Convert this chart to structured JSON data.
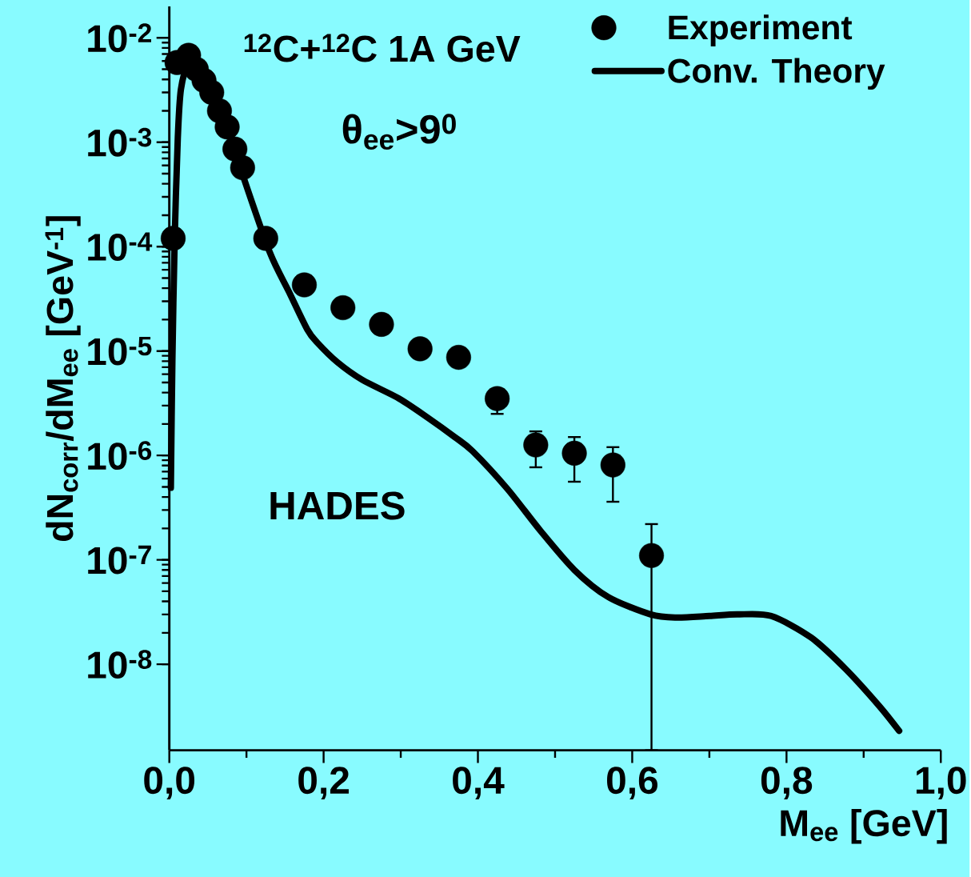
{
  "chart_data": {
    "type": "scatter",
    "xlabel": "M$_{ee}$ [GeV]",
    "ylabel": "dN$_{corr}$/dM$_{ee}$ [GeV$^{-1}$]",
    "annotations": [
      "$^{12}$C+$^{12}$C 1A GeV",
      "θ$_{ee}$>9$^{0}$",
      "HADES"
    ],
    "xlim": [
      0,
      1
    ],
    "ylim": [
      1.5e-09,
      0.02
    ],
    "xticks": [
      {
        "value": 0,
        "label": "0,0"
      },
      {
        "value": 0.2,
        "label": "0,2"
      },
      {
        "value": 0.4,
        "label": "0,4"
      },
      {
        "value": 0.6,
        "label": "0,6"
      },
      {
        "value": 0.8,
        "label": "0,8"
      },
      {
        "value": 1,
        "label": "1,0"
      }
    ],
    "yticks": [
      {
        "value": 1e-08,
        "label": "10$^{-8}$"
      },
      {
        "value": 1e-07,
        "label": "10$^{-7}$"
      },
      {
        "value": 1e-06,
        "label": "10$^{-6}$"
      },
      {
        "value": 1e-05,
        "label": "10$^{-5}$"
      },
      {
        "value": 0.0001,
        "label": "10$^{-4}$"
      },
      {
        "value": 0.001,
        "label": "10$^{-3}$"
      },
      {
        "value": 0.01,
        "label": "10$^{-2}$"
      }
    ],
    "log": "y",
    "legend": "top right",
    "series": [
      {
        "name": "Experiment",
        "marker": "circle",
        "color": "#000000",
        "x": [
          0.005,
          0.01,
          0.025,
          0.035,
          0.045,
          0.055,
          0.065,
          0.075,
          0.085,
          0.095,
          0.125,
          0.175,
          0.225,
          0.275,
          0.325,
          0.375,
          0.425,
          0.475,
          0.525,
          0.575,
          0.625
        ],
        "values": [
          0.00012,
          0.0058,
          0.0068,
          0.005,
          0.0039,
          0.003,
          0.002,
          0.0014,
          0.00086,
          0.00057,
          0.00012,
          4.3e-05,
          2.6e-05,
          1.8e-05,
          1.05e-05,
          8.7e-06,
          3.5e-06,
          1.26e-06,
          1.05e-06,
          8.1e-07,
          1.1e-07
        ],
        "errors": [
          null,
          null,
          null,
          null,
          null,
          null,
          null,
          null,
          null,
          null,
          null,
          null,
          null,
          null,
          null,
          null,
          [
            2.5e-06,
            3.5e-06
          ],
          [
            7.7e-07,
            1.7e-06
          ],
          [
            5.6e-07,
            1.5e-06
          ],
          [
            3.6e-07,
            1.2e-06
          ],
          [
            1.5e-09,
            2.2e-07
          ]
        ]
      },
      {
        "name": "Conv. Theory",
        "type": "line",
        "marker": "none",
        "line_style": "solid",
        "color": "#000000",
        "x": [
          0.002,
          0.004,
          0.007,
          0.011,
          0.015,
          0.025,
          0.035,
          0.05,
          0.065,
          0.08,
          0.095,
          0.13,
          0.155,
          0.179,
          0.192,
          0.218,
          0.25,
          0.298,
          0.335,
          0.37,
          0.393,
          0.438,
          0.481,
          0.525,
          0.569,
          0.624,
          0.657,
          0.7,
          0.736,
          0.78,
          0.832,
          0.876,
          0.92,
          0.946
        ],
        "values": [
          4.9e-07,
          8.3e-06,
          0.00012,
          0.0011,
          0.0032,
          0.006,
          0.0048,
          0.0034,
          0.002,
          0.0011,
          0.00049,
          8.9e-05,
          3.7e-05,
          1.6e-05,
          1.2e-05,
          7.8e-06,
          5.3e-06,
          3.5e-06,
          2.3e-06,
          1.5e-06,
          1.1e-06,
          4.8e-07,
          1.9e-07,
          8e-08,
          4.4e-08,
          3e-08,
          2.8e-08,
          2.9e-08,
          3e-08,
          2.9e-08,
          1.8e-08,
          9.1e-09,
          4e-09,
          2.3e-09
        ]
      }
    ]
  }
}
